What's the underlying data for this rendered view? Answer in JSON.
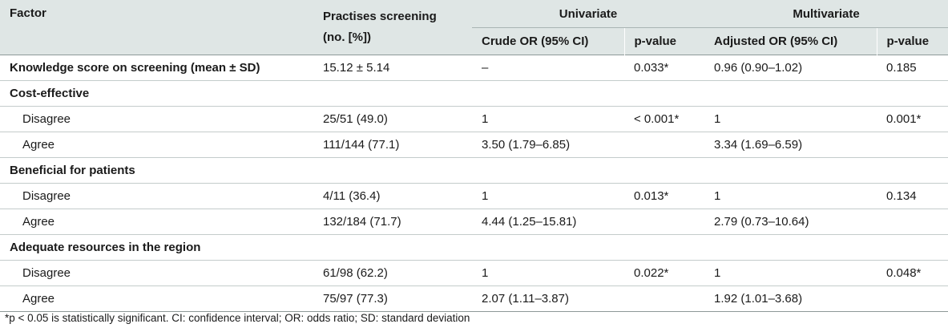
{
  "table": {
    "headers": {
      "factor": "Factor",
      "practises_line1": "Practises screening",
      "practises_line2": "(no. [%])",
      "univariate": "Univariate",
      "multivariate": "Multivariate",
      "crude_or": "Crude OR (95% CI)",
      "p_value_uni": "p-value",
      "adjusted_or": "Adjusted OR (95% CI)",
      "p_value_multi": "p-value"
    },
    "rows": [
      {
        "type": "section",
        "factor": "Knowledge score on screening (mean ± SD)",
        "practises": "15.12 ± 5.14",
        "crude": "–",
        "p_uni": "0.033*",
        "adjusted": "0.96 (0.90–1.02)",
        "p_multi": "0.185"
      },
      {
        "type": "section",
        "factor": "Cost-effective",
        "practises": "",
        "crude": "",
        "p_uni": "",
        "adjusted": "",
        "p_multi": ""
      },
      {
        "type": "sub",
        "factor": "Disagree",
        "practises": "25/51 (49.0)",
        "crude": "1",
        "p_uni": "< 0.001*",
        "adjusted": "1",
        "p_multi": "0.001*"
      },
      {
        "type": "sub",
        "factor": "Agree",
        "practises": "111/144 (77.1)",
        "crude": "3.50 (1.79–6.85)",
        "p_uni": "",
        "adjusted": "3.34 (1.69–6.59)",
        "p_multi": ""
      },
      {
        "type": "section",
        "factor": "Beneficial for patients",
        "practises": "",
        "crude": "",
        "p_uni": "",
        "adjusted": "",
        "p_multi": ""
      },
      {
        "type": "sub",
        "factor": "Disagree",
        "practises": "4/11 (36.4)",
        "crude": "1",
        "p_uni": "0.013*",
        "adjusted": "1",
        "p_multi": "0.134"
      },
      {
        "type": "sub",
        "factor": "Agree",
        "practises": "132/184 (71.7)",
        "crude": "4.44 (1.25–15.81)",
        "p_uni": "",
        "adjusted": "2.79 (0.73–10.64)",
        "p_multi": ""
      },
      {
        "type": "section",
        "factor": "Adequate resources in the region",
        "practises": "",
        "crude": "",
        "p_uni": "",
        "adjusted": "",
        "p_multi": ""
      },
      {
        "type": "sub",
        "factor": "Disagree",
        "practises": "61/98 (62.2)",
        "crude": "1",
        "p_uni": "0.022*",
        "adjusted": "1",
        "p_multi": "0.048*"
      },
      {
        "type": "sub",
        "factor": "Agree",
        "practises": "75/97 (77.3)",
        "crude": "2.07 (1.11–3.87)",
        "p_uni": "",
        "adjusted": "1.92 (1.01–3.68)",
        "p_multi": ""
      }
    ]
  },
  "footnote": "*p < 0.05 is statistically significant. CI: confidence interval; OR: odds ratio; SD: standard deviation"
}
